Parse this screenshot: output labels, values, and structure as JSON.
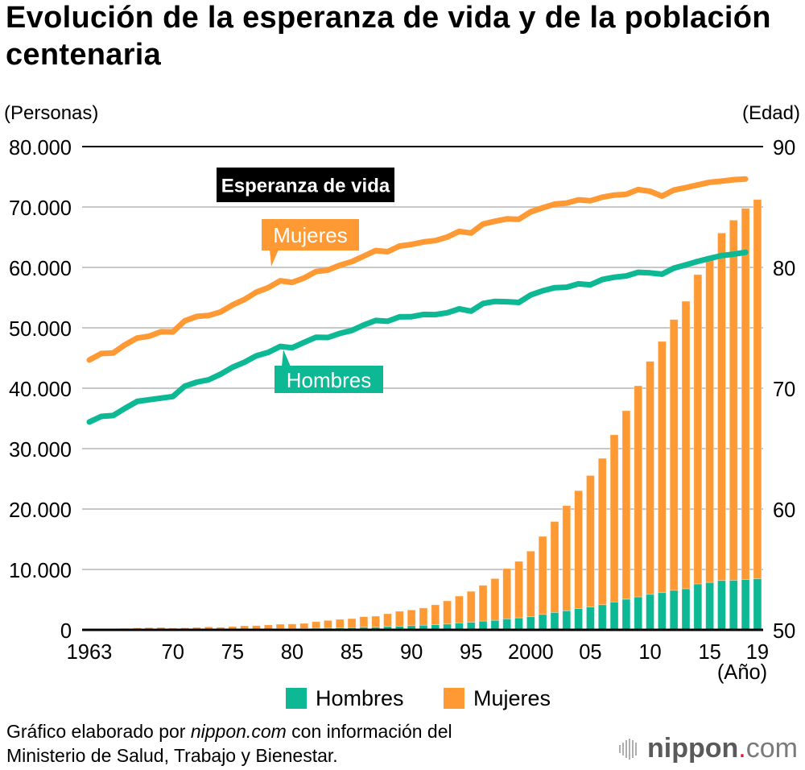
{
  "colors": {
    "men": "#0DB894",
    "women": "#FF9933",
    "label_box": "#000000",
    "grid": "#C8C8C8",
    "axis": "#000000",
    "logo_dot": "#E8112D"
  },
  "units": {
    "left": "(Personas)",
    "right": "(Edad)",
    "x": "(Año)"
  },
  "annotations": {
    "life_expectancy": "Esperanza de vida",
    "women": "Mujeres",
    "men": "Hombres"
  },
  "legend": [
    {
      "label": "Hombres",
      "color": "#0DB894"
    },
    {
      "label": "Mujeres",
      "color": "#FF9933"
    }
  ],
  "footer": {
    "line1_prefix": "Gráfico elaborado por ",
    "line1_source": "nippon.com",
    "line1_suffix": " con información del",
    "line2": "Ministerio de Salud, Trabajo y Bienestar."
  },
  "logo": {
    "icon": "sound-bars-icon",
    "word": "nippon",
    "dot": ".",
    "tld": "com"
  },
  "chart_data": {
    "type": "bar",
    "secondary_type": "line",
    "title": "Evolución de la esperanza de vida y de la población centenaria",
    "xlabel": "(Año)",
    "ylabel": "(Personas)",
    "y2label": "(Edad)",
    "ylim": [
      0,
      80000
    ],
    "y2lim": [
      50,
      90
    ],
    "grid": true,
    "legend_position": "bottom-center",
    "y_ticks": [
      0,
      10000,
      20000,
      30000,
      40000,
      50000,
      60000,
      70000,
      80000
    ],
    "y_tick_labels": [
      "0",
      "10.000",
      "20.000",
      "30.000",
      "40.000",
      "50.000",
      "60.000",
      "70.000",
      "80.000"
    ],
    "y2_ticks": [
      50,
      60,
      70,
      80,
      90
    ],
    "y2_tick_labels": [
      "50",
      "60",
      "70",
      "80",
      "90"
    ],
    "x_ticks": [
      1963,
      1970,
      1975,
      1980,
      1985,
      1990,
      1995,
      2000,
      2005,
      2010,
      2015,
      2019
    ],
    "x_tick_labels": [
      "1963",
      "70",
      "75",
      "80",
      "85",
      "90",
      "95",
      "2000",
      "05",
      "10",
      "15",
      "19"
    ],
    "x": [
      1963,
      1964,
      1965,
      1966,
      1967,
      1968,
      1969,
      1970,
      1971,
      1972,
      1973,
      1974,
      1975,
      1976,
      1977,
      1978,
      1979,
      1980,
      1981,
      1982,
      1983,
      1984,
      1985,
      1986,
      1987,
      1988,
      1989,
      1990,
      1991,
      1992,
      1993,
      1994,
      1995,
      1996,
      1997,
      1998,
      1999,
      2000,
      2001,
      2002,
      2003,
      2004,
      2005,
      2006,
      2007,
      2008,
      2009,
      2010,
      2011,
      2012,
      2013,
      2014,
      2015,
      2016,
      2017,
      2018,
      2019
    ],
    "series": [
      {
        "name": "Hombres",
        "type": "bar",
        "axis": "left",
        "stack": "centenarians",
        "color": "#0DB894",
        "values": [
          20,
          31,
          36,
          46,
          52,
          65,
          79,
          62,
          83,
          95,
          104,
          99,
          102,
          117,
          128,
          136,
          181,
          174,
          202,
          262,
          283,
          325,
          359,
          428,
          426,
          545,
          596,
          680,
          762,
          855,
          955,
          1151,
          1255,
          1439,
          1562,
          1812,
          1970,
          2158,
          2541,
          2875,
          3159,
          3523,
          3779,
          4150,
          4613,
          5063,
          5447,
          5869,
          6162,
          6534,
          6791,
          7586,
          7840,
          8167,
          8197,
          8331,
          8463
        ]
      },
      {
        "name": "Mujeres",
        "type": "bar",
        "axis": "left",
        "stack": "centenarians",
        "color": "#FF9933",
        "values": [
          133,
          160,
          162,
          206,
          275,
          310,
          326,
          248,
          256,
          310,
          391,
          328,
          446,
          549,
          577,
          690,
          756,
          794,
          870,
          1092,
          1278,
          1415,
          1500,
          1755,
          1845,
          2123,
          2482,
          2618,
          2863,
          3297,
          3847,
          4442,
          5123,
          5934,
          6929,
          8346,
          9376,
          10878,
          12934,
          15059,
          17402,
          19515,
          21775,
          24245,
          27682,
          31213,
          34952,
          38580,
          41594,
          44842,
          47606,
          51234,
          53728,
          57525,
          59627,
          61454,
          62775
        ]
      }
    ],
    "line_series": [
      {
        "name": "Mujeres",
        "type": "line",
        "axis": "right",
        "color": "#FF9933",
        "x_start": 1963,
        "x_end": 2018,
        "values": [
          72.34,
          72.87,
          72.92,
          73.61,
          74.15,
          74.3,
          74.67,
          74.66,
          75.58,
          75.94,
          76.02,
          76.31,
          76.89,
          77.35,
          77.95,
          78.33,
          78.89,
          78.76,
          79.13,
          79.66,
          79.78,
          80.18,
          80.48,
          80.93,
          81.39,
          81.3,
          81.77,
          81.9,
          82.11,
          82.22,
          82.51,
          82.98,
          82.85,
          83.59,
          83.82,
          84.01,
          83.99,
          84.6,
          84.93,
          85.23,
          85.33,
          85.59,
          85.52,
          85.81,
          85.99,
          86.05,
          86.44,
          86.3,
          85.9,
          86.41,
          86.61,
          86.83,
          87.05,
          87.14,
          87.26,
          87.32
        ]
      },
      {
        "name": "Hombres",
        "type": "line",
        "axis": "right",
        "color": "#0DB894",
        "x_start": 1963,
        "x_end": 2018,
        "values": [
          67.21,
          67.67,
          67.74,
          68.35,
          68.91,
          69.05,
          69.18,
          69.31,
          70.17,
          70.5,
          70.7,
          71.16,
          71.73,
          72.15,
          72.69,
          72.97,
          73.46,
          73.35,
          73.79,
          74.22,
          74.2,
          74.54,
          74.78,
          75.23,
          75.61,
          75.54,
          75.91,
          75.92,
          76.11,
          76.09,
          76.25,
          76.57,
          76.38,
          77.01,
          77.19,
          77.16,
          77.1,
          77.72,
          78.07,
          78.32,
          78.36,
          78.64,
          78.56,
          79.0,
          79.19,
          79.29,
          79.59,
          79.55,
          79.44,
          79.94,
          80.21,
          80.5,
          80.75,
          80.98,
          81.09,
          81.25
        ]
      }
    ],
    "annotations": [
      "Esperanza de vida",
      "Mujeres",
      "Hombres"
    ]
  }
}
